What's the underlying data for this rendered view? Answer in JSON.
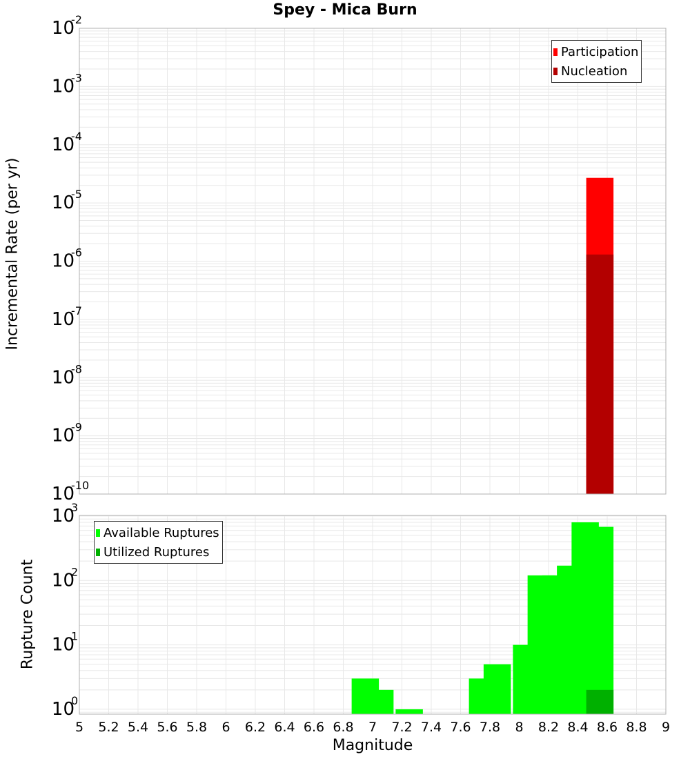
{
  "title": "Spey - Mica Burn",
  "colors": {
    "participation": "#ff0000",
    "nucleation": "#b30000",
    "available": "#00ff00",
    "utilized": "#00b000",
    "grid": "#e8e8e8",
    "axis": "#b0b0b0"
  },
  "top_panel": {
    "ylabel": "Incremental Rate (per yr)",
    "legend": [
      {
        "label": "Participation",
        "color": "#ff0000"
      },
      {
        "label": "Nucleation",
        "color": "#b30000"
      }
    ],
    "ytick_exponents": [
      "-2",
      "-3",
      "-4",
      "-5",
      "-6",
      "-7",
      "-8",
      "-9",
      "-10"
    ]
  },
  "bottom_panel": {
    "ylabel": "Rupture Count",
    "legend": [
      {
        "label": "Available Ruptures",
        "color": "#00ff00"
      },
      {
        "label": "Utilized Ruptures",
        "color": "#00b000"
      }
    ],
    "ytick_exponents": [
      "3",
      "2",
      "1",
      "0"
    ]
  },
  "xlabel": "Magnitude",
  "xticks": [
    "5",
    "5.2",
    "5.4",
    "5.6",
    "5.8",
    "6",
    "6.2",
    "6.4",
    "6.6",
    "6.8",
    "7",
    "7.2",
    "7.4",
    "7.6",
    "7.8",
    "8",
    "8.2",
    "8.4",
    "8.6",
    "8.8",
    "9"
  ],
  "chart_data": [
    {
      "type": "bar",
      "title": "Spey - Mica Burn",
      "xlabel": "Magnitude",
      "ylabel": "Incremental Rate (per yr)",
      "yscale": "log",
      "xlim": [
        5,
        9
      ],
      "ylim": [
        1e-10,
        0.01
      ],
      "grid": true,
      "legend_position": "top-right",
      "series": [
        {
          "name": "Participation",
          "x": [
            8.55
          ],
          "values": [
            2.7e-05
          ]
        },
        {
          "name": "Nucleation",
          "x": [
            8.55
          ],
          "values": [
            1.3e-06
          ]
        }
      ]
    },
    {
      "type": "bar",
      "xlabel": "Magnitude",
      "ylabel": "Rupture Count",
      "yscale": "log",
      "xlim": [
        5,
        9
      ],
      "ylim": [
        0.84,
        1000
      ],
      "grid": true,
      "legend_position": "top-left",
      "series": [
        {
          "name": "Available Ruptures",
          "x": [
            6.95,
            7.05,
            7.25,
            7.75,
            7.85,
            8.05,
            8.15,
            8.25,
            8.35,
            8.45,
            8.55
          ],
          "values": [
            3,
            2,
            1,
            3,
            5,
            10,
            120,
            120,
            170,
            800,
            680
          ]
        },
        {
          "name": "Utilized Ruptures",
          "x": [
            8.55
          ],
          "values": [
            2
          ]
        }
      ]
    }
  ]
}
